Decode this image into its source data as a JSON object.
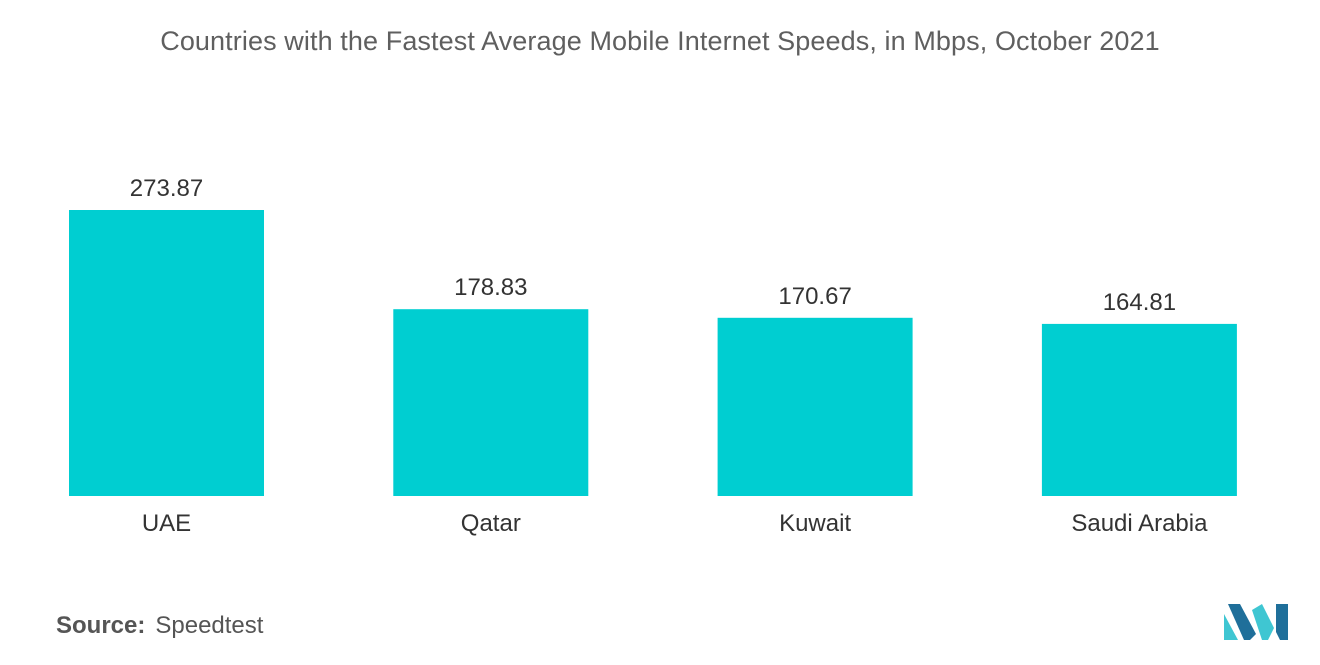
{
  "title": "Countries with the Fastest Average Mobile Internet Speeds, in Mbps, October 2021",
  "source": {
    "label": "Source:",
    "value": "Speedtest"
  },
  "colors": {
    "bar": "#00ced1",
    "text": "#333333",
    "title": "#5f5f5f",
    "logo_dark": "#1f6f9a",
    "logo_light": "#3fc6d2"
  },
  "logo_icon": "brand-logo-icon",
  "chart_data": {
    "type": "bar",
    "title": "Countries with the Fastest Average Mobile Internet Speeds, in Mbps, October 2021",
    "categories": [
      "UAE",
      "Qatar",
      "Kuwait",
      "Saudi Arabia"
    ],
    "values": [
      273.87,
      178.83,
      170.67,
      164.81
    ],
    "value_labels": [
      "273.87",
      "178.83",
      "170.67",
      "164.81"
    ],
    "xlabel": "",
    "ylabel": "",
    "ylim": [
      0,
      273.87
    ],
    "grid": false,
    "legend": "none"
  }
}
